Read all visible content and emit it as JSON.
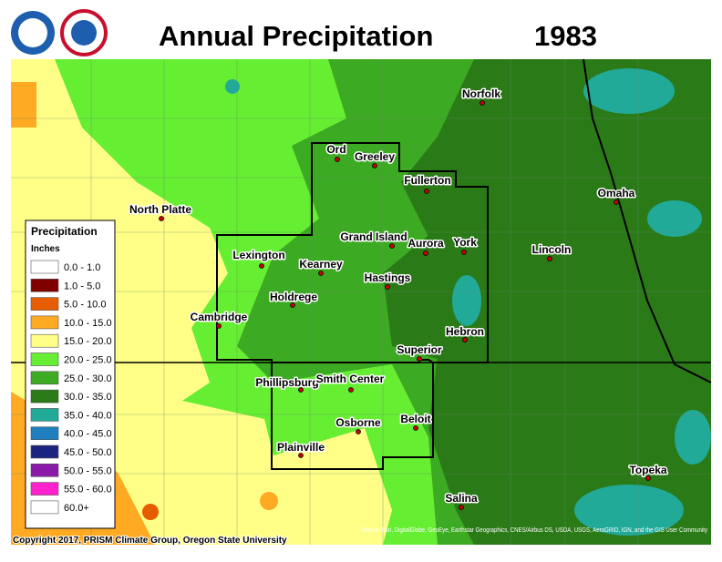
{
  "header": {
    "title": "Annual Precipitation",
    "year": "1983"
  },
  "legend": {
    "title": "Precipitation",
    "unit": "Inches",
    "items": [
      {
        "label": "0.0 - 1.0",
        "color": "#ffffff"
      },
      {
        "label": "1.0 - 5.0",
        "color": "#800000"
      },
      {
        "label": "5.0 - 10.0",
        "color": "#e65c00"
      },
      {
        "label": "10.0 - 15.0",
        "color": "#ffaa22"
      },
      {
        "label": "15.0 - 20.0",
        "color": "#ffff88"
      },
      {
        "label": "20.0 - 25.0",
        "color": "#66ee33"
      },
      {
        "label": "25.0 - 30.0",
        "color": "#3caa22"
      },
      {
        "label": "30.0 - 35.0",
        "color": "#2a7a18"
      },
      {
        "label": "35.0 - 40.0",
        "color": "#22aa99"
      },
      {
        "label": "40.0 - 45.0",
        "color": "#1f7fbf"
      },
      {
        "label": "45.0 - 50.0",
        "color": "#1a237e"
      },
      {
        "label": "50.0 - 55.0",
        "color": "#8a1aa8"
      },
      {
        "label": "55.0 - 60.0",
        "color": "#ff22cc"
      },
      {
        "label": "60.0+",
        "color": "#ffffff"
      }
    ]
  },
  "cities": [
    "Norfolk",
    "Ord",
    "Greeley",
    "Fullerton",
    "Omaha",
    "North Platte",
    "Grand Island",
    "Aurora",
    "York",
    "Lincoln",
    "Lexington",
    "Kearney",
    "Hastings",
    "Holdrege",
    "Cambridge",
    "Hebron",
    "Superior",
    "Phillipsburg",
    "Smith Center",
    "Beloit",
    "Osborne",
    "Plainville",
    "Topeka",
    "Salina"
  ],
  "footer": {
    "copyright": "Copyright 2017, PRISM Climate Group, Oregon State University",
    "source": "Source: Esri, DigitalGlobe, GeoEye, Earthstar Geographics, CNES/Airbus DS, USDA, USGS, AeroGRID, IGN, and the GIS User Community"
  }
}
